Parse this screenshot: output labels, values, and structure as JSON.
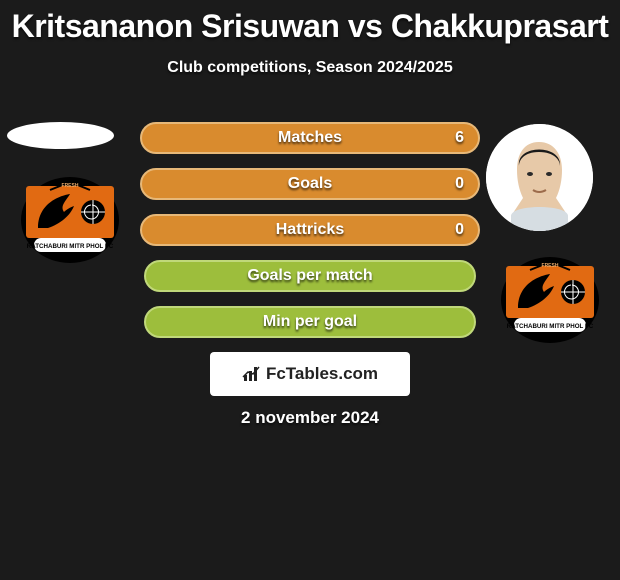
{
  "title": "Kritsananon Srisuwan vs Chakkuprasart",
  "subtitle": "Club competitions, Season 2024/2025",
  "date": "2 november 2024",
  "brand": {
    "label": "FcTables.com"
  },
  "colors": {
    "row_green": "#9dbe3c",
    "row_green_border": "#c0d87a",
    "row_accent": "#d98b2e",
    "row_accent_border": "#e7b878",
    "background": "#1b1b1b",
    "crest_orange": "#e16a12",
    "crest_black": "#000000",
    "crest_white": "#ffffff"
  },
  "rows": [
    {
      "label": "Matches",
      "left": "",
      "right": "6",
      "left_pct": 0,
      "right_pct": 100
    },
    {
      "label": "Goals",
      "left": "",
      "right": "0",
      "left_pct": 0,
      "right_pct": 100
    },
    {
      "label": "Hattricks",
      "left": "",
      "right": "0",
      "left_pct": 0,
      "right_pct": 100
    },
    {
      "label": "Goals per match",
      "left": "",
      "right": "",
      "left_pct": 0,
      "right_pct": 0,
      "short": true
    },
    {
      "label": "Min per goal",
      "left": "",
      "right": "",
      "left_pct": 0,
      "right_pct": 0,
      "short": true
    }
  ],
  "left_player": {
    "name": "Kritsananon Srisuwan"
  },
  "right_player": {
    "name": "Chakkuprasart"
  },
  "left_club": {
    "crest": "ratchaburi"
  },
  "right_club": {
    "crest": "ratchaburi"
  }
}
